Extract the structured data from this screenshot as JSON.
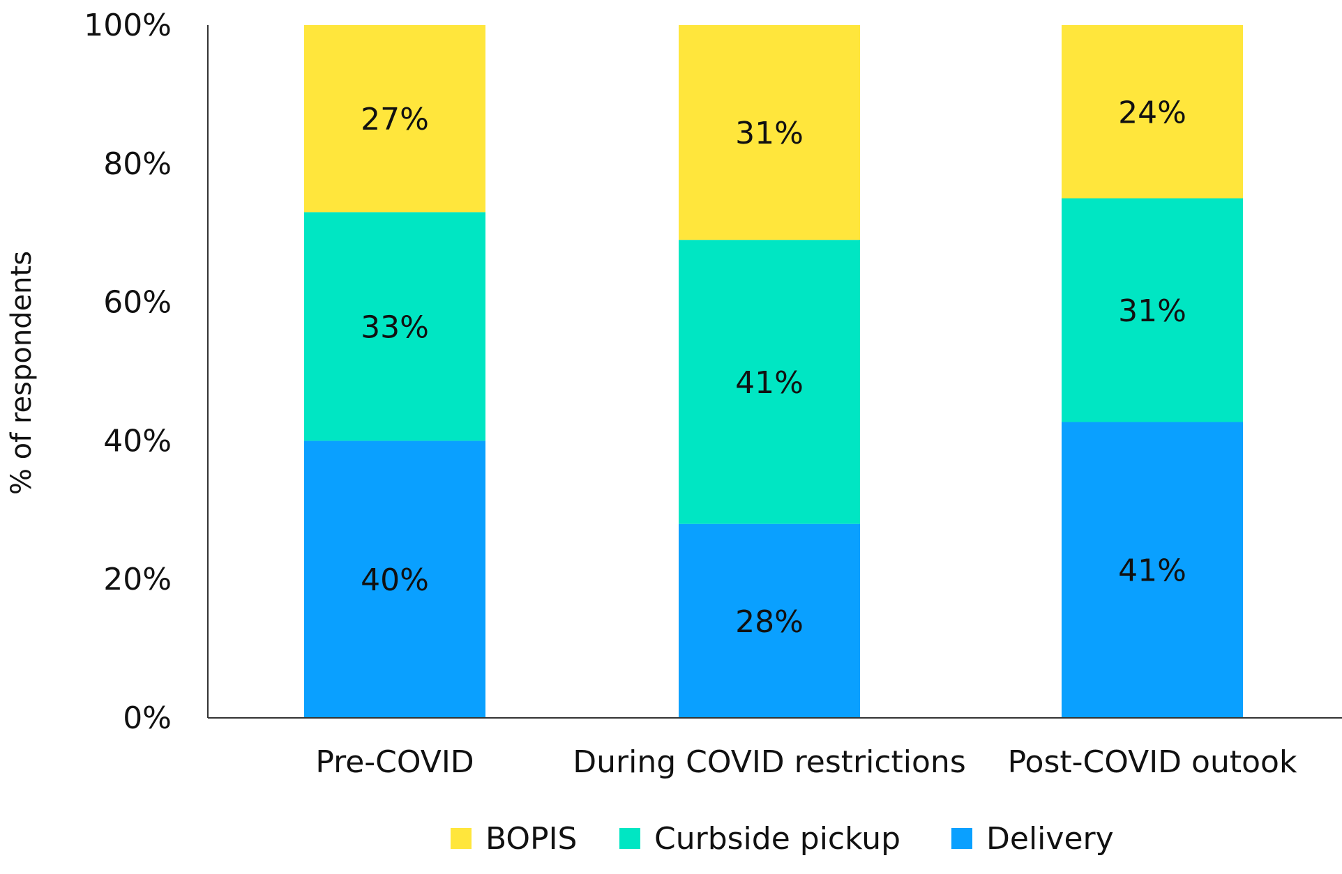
{
  "chart_data": {
    "type": "bar",
    "stacked": true,
    "normalized": true,
    "title": "",
    "xlabel": "",
    "ylabel": "% of respondents",
    "ylim": [
      0,
      100
    ],
    "yticks": [
      "0%",
      "20%",
      "40%",
      "60%",
      "80%",
      "100%"
    ],
    "categories": [
      "Pre-COVID",
      "During COVID restrictions",
      "Post-COVID outook"
    ],
    "series": [
      {
        "name": "Delivery",
        "color": "#0aa0ff",
        "values": [
          40,
          28,
          41
        ],
        "labels": [
          "40%",
          "28%",
          "41%"
        ]
      },
      {
        "name": "Curbside pickup",
        "color": "#00e6c3",
        "values": [
          33,
          41,
          31
        ],
        "labels": [
          "33%",
          "41%",
          "31%"
        ]
      },
      {
        "name": "BOPIS",
        "color": "#ffe63c",
        "values": [
          27,
          31,
          24
        ],
        "labels": [
          "27%",
          "31%",
          "24%"
        ]
      }
    ],
    "legend": {
      "placement": "bottom",
      "order": [
        "BOPIS",
        "Curbside pickup",
        "Delivery"
      ]
    },
    "grid": false
  }
}
